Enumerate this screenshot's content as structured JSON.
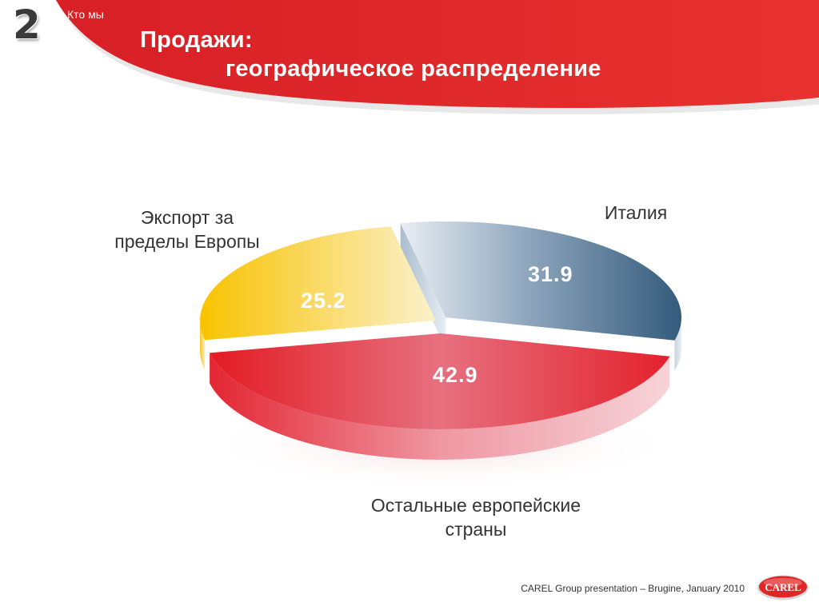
{
  "header": {
    "slide_number": "2",
    "section": "Кто мы",
    "title_line1": "Продажи:",
    "title_line2": "географическое распределение"
  },
  "chart_data": {
    "type": "pie",
    "title": "",
    "slices": [
      {
        "label_line1": "Италия",
        "label_line2": "",
        "value": 31.9,
        "color": "#3e6384"
      },
      {
        "label_line1": "Остальные европейские",
        "label_line2": "страны",
        "value": 42.9,
        "color": "#e31b23"
      },
      {
        "label_line1": "Экспорт за",
        "label_line2": "пределы Европы",
        "value": 25.2,
        "color": "#f7c200"
      }
    ],
    "value_labels": [
      "31.9",
      "42.9",
      "25.2"
    ]
  },
  "footer": {
    "text": "CAREL Group presentation – Brugine, January 2010",
    "logo_text": "CAREL"
  },
  "colors": {
    "banner_red": "#e02726",
    "title_text": "#ffffff"
  }
}
